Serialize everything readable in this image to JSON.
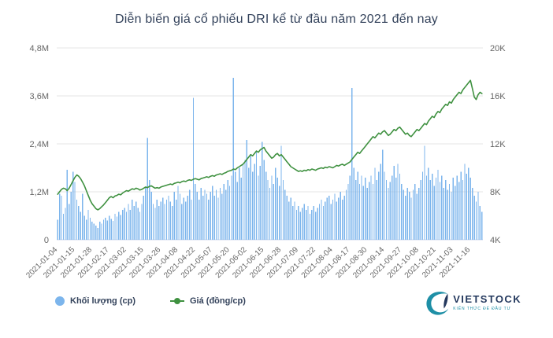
{
  "colors": {
    "volume": "#7cb5ec",
    "price": "#3f9140",
    "title_text": "#33425b",
    "axis_text": "#666666",
    "grid": "#e6e6e6",
    "axis_line": "#ccd6eb",
    "legend_text": "#33425b",
    "logo_navy": "#24395e",
    "logo_teal": "#1e8fa6",
    "background": "#ffffff"
  },
  "logo": {
    "brand": "VIETSTOCK",
    "tagline": "KIẾN THỨC ĐỂ ĐẦU TƯ"
  },
  "chart_data": {
    "type": "combo",
    "title": "Diễn biến giá cổ phiếu DRI kể từ đầu năm 2021 đến nay",
    "grid": "horizontal",
    "legend_position": "bottom-left",
    "x_tick_interval": 9,
    "x_tick_labels": [
      "2021-01-04",
      "2021-01-15",
      "2021-01-28",
      "2021-02-17",
      "2021-03-02",
      "2021-03-15",
      "2021-03-26",
      "2021-04-08",
      "2021-04-22",
      "2021-05-07",
      "2021-05-20",
      "2021-06-02",
      "2021-06-15",
      "2021-06-28",
      "2021-07-09",
      "2021-07-22",
      "2021-08-04",
      "2021-08-17",
      "2021-08-30",
      "2021-09-14",
      "2021-09-27",
      "2021-10-08",
      "2021-10-21",
      "2021-11-03",
      "2021-11-16"
    ],
    "left_axis": {
      "min": 0,
      "max": 4800000,
      "tick_labels": [
        "0",
        "1,2M",
        "2,4M",
        "3,6M",
        "4,8M"
      ]
    },
    "right_axis": {
      "min": 4000,
      "max": 20000,
      "tick_labels": [
        "4K",
        "8K",
        "12K",
        "16K",
        "20K"
      ]
    },
    "x_dates": [
      "2021-01-04",
      "2021-01-05",
      "2021-01-06",
      "2021-01-07",
      "2021-01-08",
      "2021-01-11",
      "2021-01-12",
      "2021-01-13",
      "2021-01-14",
      "2021-01-15",
      "2021-01-18",
      "2021-01-19",
      "2021-01-20",
      "2021-01-21",
      "2021-01-22",
      "2021-01-25",
      "2021-01-26",
      "2021-01-27",
      "2021-01-28",
      "2021-01-29",
      "2021-02-01",
      "2021-02-02",
      "2021-02-03",
      "2021-02-04",
      "2021-02-05",
      "2021-02-08",
      "2021-02-09",
      "2021-02-17",
      "2021-02-18",
      "2021-02-19",
      "2021-02-22",
      "2021-02-23",
      "2021-02-24",
      "2021-02-25",
      "2021-02-26",
      "2021-03-01",
      "2021-03-02",
      "2021-03-03",
      "2021-03-04",
      "2021-03-05",
      "2021-03-08",
      "2021-03-09",
      "2021-03-10",
      "2021-03-11",
      "2021-03-12",
      "2021-03-15",
      "2021-03-16",
      "2021-03-17",
      "2021-03-18",
      "2021-03-19",
      "2021-03-22",
      "2021-03-23",
      "2021-03-24",
      "2021-03-25",
      "2021-03-26",
      "2021-03-29",
      "2021-03-30",
      "2021-03-31",
      "2021-04-01",
      "2021-04-02",
      "2021-04-05",
      "2021-04-06",
      "2021-04-07",
      "2021-04-08",
      "2021-04-09",
      "2021-04-12",
      "2021-04-13",
      "2021-04-14",
      "2021-04-15",
      "2021-04-16",
      "2021-04-19",
      "2021-04-20",
      "2021-04-22",
      "2021-04-23",
      "2021-04-26",
      "2021-04-27",
      "2021-04-28",
      "2021-04-29",
      "2021-05-04",
      "2021-05-05",
      "2021-05-06",
      "2021-05-07",
      "2021-05-10",
      "2021-05-11",
      "2021-05-12",
      "2021-05-13",
      "2021-05-14",
      "2021-05-17",
      "2021-05-18",
      "2021-05-19",
      "2021-05-20",
      "2021-05-21",
      "2021-05-24",
      "2021-05-25",
      "2021-05-26",
      "2021-05-27",
      "2021-05-28",
      "2021-05-31",
      "2021-06-01",
      "2021-06-02",
      "2021-06-03",
      "2021-06-04",
      "2021-06-07",
      "2021-06-08",
      "2021-06-09",
      "2021-06-10",
      "2021-06-11",
      "2021-06-14",
      "2021-06-15",
      "2021-06-16",
      "2021-06-17",
      "2021-06-18",
      "2021-06-21",
      "2021-06-22",
      "2021-06-23",
      "2021-06-24",
      "2021-06-25",
      "2021-06-28",
      "2021-06-29",
      "2021-06-30",
      "2021-07-01",
      "2021-07-02",
      "2021-07-05",
      "2021-07-06",
      "2021-07-07",
      "2021-07-08",
      "2021-07-09",
      "2021-07-12",
      "2021-07-13",
      "2021-07-14",
      "2021-07-15",
      "2021-07-16",
      "2021-07-19",
      "2021-07-20",
      "2021-07-21",
      "2021-07-22",
      "2021-07-23",
      "2021-07-26",
      "2021-07-27",
      "2021-07-28",
      "2021-07-29",
      "2021-07-30",
      "2021-08-02",
      "2021-08-03",
      "2021-08-04",
      "2021-08-05",
      "2021-08-06",
      "2021-08-09",
      "2021-08-10",
      "2021-08-11",
      "2021-08-12",
      "2021-08-13",
      "2021-08-16",
      "2021-08-17",
      "2021-08-18",
      "2021-08-19",
      "2021-08-20",
      "2021-08-23",
      "2021-08-24",
      "2021-08-25",
      "2021-08-26",
      "2021-08-27",
      "2021-08-30",
      "2021-08-31",
      "2021-09-01",
      "2021-09-06",
      "2021-09-07",
      "2021-09-08",
      "2021-09-09",
      "2021-09-10",
      "2021-09-13",
      "2021-09-14",
      "2021-09-15",
      "2021-09-16",
      "2021-09-17",
      "2021-09-20",
      "2021-09-21",
      "2021-09-22",
      "2021-09-23",
      "2021-09-24",
      "2021-09-27",
      "2021-09-28",
      "2021-09-29",
      "2021-09-30",
      "2021-10-01",
      "2021-10-04",
      "2021-10-05",
      "2021-10-06",
      "2021-10-07",
      "2021-10-08",
      "2021-10-11",
      "2021-10-12",
      "2021-10-13",
      "2021-10-14",
      "2021-10-15",
      "2021-10-18",
      "2021-10-19",
      "2021-10-20",
      "2021-10-21",
      "2021-10-22",
      "2021-10-25",
      "2021-10-26",
      "2021-10-27",
      "2021-10-28",
      "2021-10-29",
      "2021-11-01",
      "2021-11-02",
      "2021-11-03",
      "2021-11-04",
      "2021-11-05",
      "2021-11-08",
      "2021-11-09",
      "2021-11-10",
      "2021-11-11",
      "2021-11-12",
      "2021-11-15",
      "2021-11-16",
      "2021-11-17",
      "2021-11-18",
      "2021-11-19",
      "2021-11-22",
      "2021-11-23",
      "2021-11-24"
    ],
    "series": [
      {
        "name": "Khối lượng (cp)",
        "type": "bar",
        "axis": "left",
        "color": "#7cb5ec",
        "values": [
          500000,
          1150000,
          1100000,
          650000,
          800000,
          1750000,
          900000,
          1200000,
          1700000,
          1450000,
          1000000,
          850000,
          700000,
          1150000,
          600000,
          500000,
          750000,
          550000,
          450000,
          400000,
          350000,
          300000,
          450000,
          400000,
          500000,
          550000,
          480000,
          600000,
          520000,
          470000,
          650000,
          580000,
          700000,
          620000,
          750000,
          800000,
          700000,
          900000,
          750000,
          1000000,
          850000,
          950000,
          800000,
          700000,
          900000,
          1100000,
          1300000,
          2550000,
          1500000,
          1200000,
          900000,
          800000,
          1000000,
          850000,
          950000,
          1050000,
          900000,
          1000000,
          1100000,
          950000,
          850000,
          1200000,
          1000000,
          1350000,
          1150000,
          900000,
          1050000,
          950000,
          1100000,
          1250000,
          1000000,
          3550000,
          1400000,
          1200000,
          1000000,
          1300000,
          1100000,
          1250000,
          1150000,
          1000000,
          1200000,
          1350000,
          1100000,
          1250000,
          1050000,
          1300000,
          1150000,
          1400000,
          1250000,
          1500000,
          1350000,
          1600000,
          4050000,
          1700000,
          1450000,
          1800000,
          1550000,
          1900000,
          2000000,
          2500000,
          1800000,
          2100000,
          1700000,
          1900000,
          2200000,
          1600000,
          1850000,
          2450000,
          2000000,
          1700000,
          1500000,
          1300000,
          1600000,
          1400000,
          1800000,
          1550000,
          1350000,
          2350000,
          1500000,
          1250000,
          1100000,
          950000,
          1050000,
          850000,
          950000,
          750000,
          850000,
          700000,
          800000,
          900000,
          750000,
          850000,
          650000,
          750000,
          850000,
          700000,
          800000,
          900000,
          1000000,
          850000,
          950000,
          1050000,
          1100000,
          900000,
          1000000,
          1150000,
          950000,
          1050000,
          1200000,
          1000000,
          1100000,
          1250000,
          1400000,
          1600000,
          3800000,
          1800000,
          1500000,
          1700000,
          1400000,
          1600000,
          1350000,
          1550000,
          1300000,
          1450000,
          1600000,
          1400000,
          1800000,
          1500000,
          1700000,
          1900000,
          2250000,
          1700000,
          1500000,
          1300000,
          1450000,
          1600000,
          1850000,
          1550000,
          1900000,
          1650000,
          1400000,
          1250000,
          1100000,
          1300000,
          1200000,
          1050000,
          1250000,
          1400000,
          1150000,
          1300000,
          1500000,
          1700000,
          2350000,
          1600000,
          1800000,
          1500000,
          1650000,
          1350000,
          1550000,
          1750000,
          1450000,
          1600000,
          1300000,
          1500000,
          1250000,
          1400000,
          1200000,
          1550000,
          1350000,
          1600000,
          1450000,
          1700000,
          1500000,
          1900000,
          1650000,
          1800000,
          1550000,
          1300000,
          1100000,
          950000,
          1200000,
          850000,
          700000
        ]
      },
      {
        "name": "Giá (đồng/cp)",
        "type": "line",
        "axis": "right",
        "color": "#3f9140",
        "values": [
          7800,
          8000,
          8200,
          8300,
          8250,
          8100,
          8300,
          8600,
          8900,
          9200,
          9400,
          9300,
          9100,
          8800,
          8500,
          8100,
          7700,
          7300,
          7000,
          6800,
          6600,
          6500,
          6600,
          6750,
          6900,
          7100,
          7300,
          7500,
          7600,
          7500,
          7650,
          7700,
          7800,
          7750,
          7900,
          8000,
          8100,
          8050,
          8150,
          8250,
          8200,
          8300,
          8250,
          8150,
          8200,
          8300,
          8400,
          8350,
          8450,
          8500,
          8400,
          8300,
          8350,
          8300,
          8400,
          8450,
          8500,
          8550,
          8600,
          8650,
          8600,
          8700,
          8750,
          8800,
          8750,
          8850,
          8900,
          8850,
          8950,
          9000,
          8950,
          9050,
          9100,
          9050,
          9000,
          9100,
          9150,
          9200,
          9250,
          9200,
          9300,
          9350,
          9300,
          9400,
          9450,
          9500,
          9450,
          9550,
          9600,
          9700,
          9750,
          9800,
          9900,
          9850,
          10000,
          10100,
          10200,
          10300,
          10500,
          10700,
          10900,
          11100,
          11000,
          11200,
          11400,
          11300,
          11500,
          11600,
          11700,
          11400,
          11200,
          11000,
          10800,
          10900,
          11100,
          11200,
          11000,
          11100,
          10900,
          10700,
          10500,
          10300,
          10100,
          10000,
          9900,
          9800,
          9700,
          9750,
          9700,
          9800,
          9750,
          9850,
          9800,
          9900,
          9850,
          9800,
          9900,
          9950,
          10000,
          9950,
          10050,
          10000,
          10100,
          10050,
          10000,
          10100,
          10200,
          10150,
          10250,
          10300,
          10200,
          10300,
          10400,
          10500,
          10700,
          10900,
          11100,
          11300,
          11200,
          11400,
          11600,
          11800,
          12000,
          12200,
          12400,
          12600,
          12500,
          12700,
          12900,
          12800,
          13000,
          13100,
          12900,
          12700,
          12800,
          13000,
          13200,
          13100,
          13300,
          13400,
          13200,
          13000,
          12800,
          12900,
          12700,
          12600,
          12800,
          13000,
          13200,
          13100,
          13300,
          13500,
          13700,
          13600,
          13900,
          14100,
          14300,
          14200,
          14500,
          14700,
          14600,
          14900,
          15100,
          15300,
          15200,
          15500,
          15400,
          15700,
          15900,
          16100,
          16300,
          16200,
          16500,
          16700,
          16900,
          17100,
          17300,
          16600,
          15900,
          15700,
          16100,
          16300,
          16200
        ]
      }
    ]
  }
}
